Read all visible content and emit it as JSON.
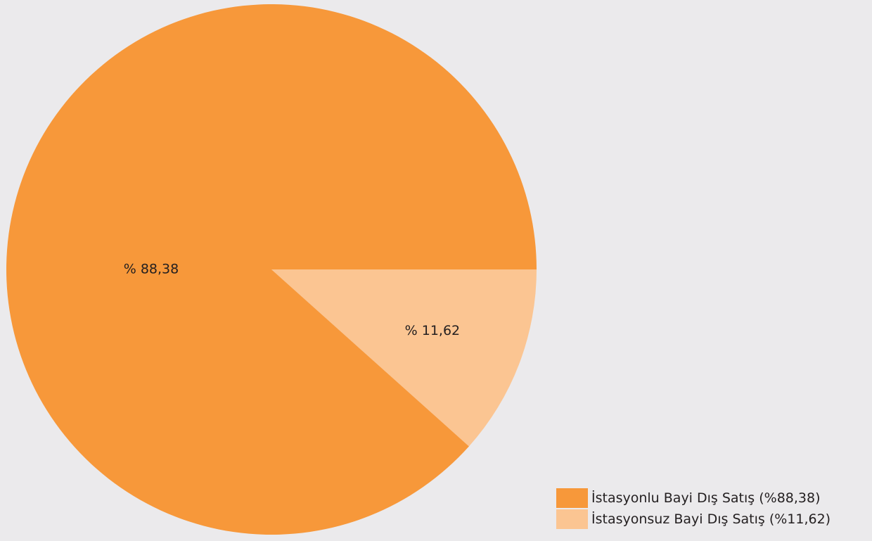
{
  "chart_data": {
    "type": "pie",
    "categories": [
      "İstasyonlu Bayi Dış Satış",
      "İstasyonsuz Bayi Dış Satış"
    ],
    "values": [
      88.38,
      11.62
    ],
    "slice_labels": [
      "% 88,38",
      "% 11,62"
    ],
    "colors": [
      "#f7983a",
      "#fbc592"
    ],
    "legend": {
      "position": "bottom-right",
      "entries": [
        {
          "label": "İstasyonlu Bayi Dış Satış (%88,38)",
          "color": "#f7983a"
        },
        {
          "label": "İstasyonsuz Bayi Dış Satış (%11,62)",
          "color": "#fbc592"
        }
      ]
    },
    "start_angle_deg": 0,
    "direction": "clockwise",
    "background": "#ebeaec"
  }
}
